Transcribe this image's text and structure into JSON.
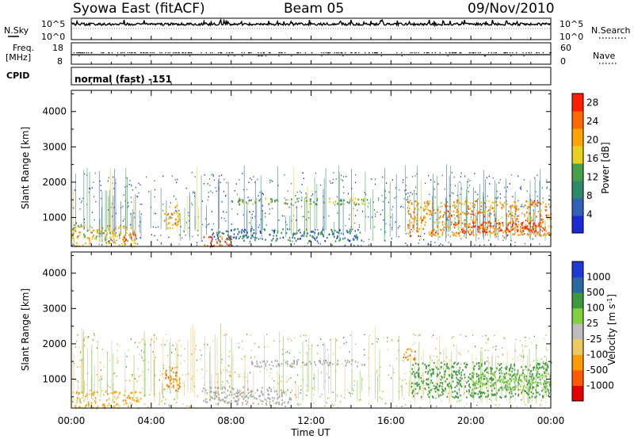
{
  "header": {
    "title": "Syowa East (fitACF)",
    "beam": "Beam 05",
    "date": "09/Nov/2010"
  },
  "top_panels": {
    "nsky_label": "N.Sky",
    "nsky_top": "10^5",
    "nsky_bottom": "10^0",
    "nsearch_label": "N.Search",
    "freq_label_line1": "Freq.",
    "freq_label_line2": "[MHz]",
    "freq_top": "18",
    "freq_bottom": "8",
    "nave_label": "Nave",
    "nave_top": "60",
    "nave_bottom": "0",
    "cpid_label": "CPID",
    "cpid_text": "normal (fast) -151"
  },
  "colors": {
    "power_scale": [
      "#1a2bd6",
      "#3160b8",
      "#2e8a6a",
      "#47a047",
      "#e8d020",
      "#ffa500",
      "#ff6a00",
      "#ff1e00"
    ],
    "velocity_scale": [
      "#e60000",
      "#ff5a00",
      "#ff9a00",
      "#f0c860",
      "#bdbdbd",
      "#80d040",
      "#3c9a3c",
      "#2a6aa0",
      "#1e3ad6"
    ],
    "ground_scatter": "#a8a8a8"
  },
  "chart_data": [
    {
      "type": "heatmap",
      "panel": "power",
      "ylabel": "Slant Range [km]",
      "xlabel": "",
      "xlim": [
        "00:00",
        "24:00"
      ],
      "ylim": [
        180,
        4600
      ],
      "x_ticks": [
        "00:00",
        "04:00",
        "08:00",
        "12:00",
        "16:00",
        "20:00",
        "00:00"
      ],
      "y_ticks": [
        1000,
        2000,
        3000,
        4000
      ],
      "colorbar": {
        "label": "Power [dB]",
        "ticks": [
          4,
          8,
          12,
          16,
          20,
          24,
          28
        ],
        "range": [
          0,
          30
        ]
      },
      "regions": [
        {
          "t0": 0.0,
          "t1": 3.2,
          "r0": 200,
          "r1": 800,
          "level": 18
        },
        {
          "t0": 2.5,
          "t1": 3.2,
          "r0": 300,
          "r1": 600,
          "level": 28
        },
        {
          "t0": 4.6,
          "t1": 5.4,
          "r0": 700,
          "r1": 1400,
          "level": 20
        },
        {
          "t0": 6.5,
          "t1": 8.0,
          "r0": 200,
          "r1": 500,
          "level": 26
        },
        {
          "t0": 8.0,
          "t1": 14.8,
          "r0": 1380,
          "r1": 1560,
          "level": 14
        },
        {
          "t0": 7.0,
          "t1": 14.5,
          "r0": 350,
          "r1": 700,
          "level": 8
        },
        {
          "t0": 16.8,
          "t1": 24.0,
          "r0": 500,
          "r1": 1500,
          "level": 22
        },
        {
          "t0": 19.5,
          "t1": 23.5,
          "r0": 600,
          "r1": 900,
          "level": 28
        }
      ]
    },
    {
      "type": "heatmap",
      "panel": "velocity",
      "ylabel": "Slant Range [km]",
      "xlabel": "Time UT",
      "xlim": [
        "00:00",
        "24:00"
      ],
      "ylim": [
        180,
        4600
      ],
      "x_ticks": [
        "00:00",
        "04:00",
        "08:00",
        "12:00",
        "16:00",
        "20:00",
        "00:00"
      ],
      "y_ticks": [
        1000,
        2000,
        3000,
        4000
      ],
      "colorbar": {
        "label": "Velocity [m s^-1]",
        "ticks": [
          "1000",
          "500",
          "100",
          "25",
          "-25",
          "-100",
          "-500",
          "-1000"
        ]
      },
      "regions": [
        {
          "t0": 0.0,
          "t1": 3.5,
          "r0": 200,
          "r1": 700,
          "velocity": -100
        },
        {
          "t0": 4.6,
          "t1": 5.4,
          "r0": 700,
          "r1": 1400,
          "velocity": -500
        },
        {
          "t0": 6.5,
          "t1": 11.0,
          "r0": 300,
          "r1": 800,
          "velocity": 0
        },
        {
          "t0": 9.0,
          "t1": 14.8,
          "r0": 1380,
          "r1": 1560,
          "velocity": 0
        },
        {
          "t0": 16.6,
          "t1": 17.2,
          "r0": 1500,
          "r1": 1900,
          "velocity": -500
        },
        {
          "t0": 17.0,
          "t1": 24.0,
          "r0": 500,
          "r1": 1500,
          "velocity": 300
        },
        {
          "t0": 20.0,
          "t1": 24.0,
          "r0": 700,
          "r1": 1200,
          "velocity": 50
        }
      ]
    }
  ]
}
